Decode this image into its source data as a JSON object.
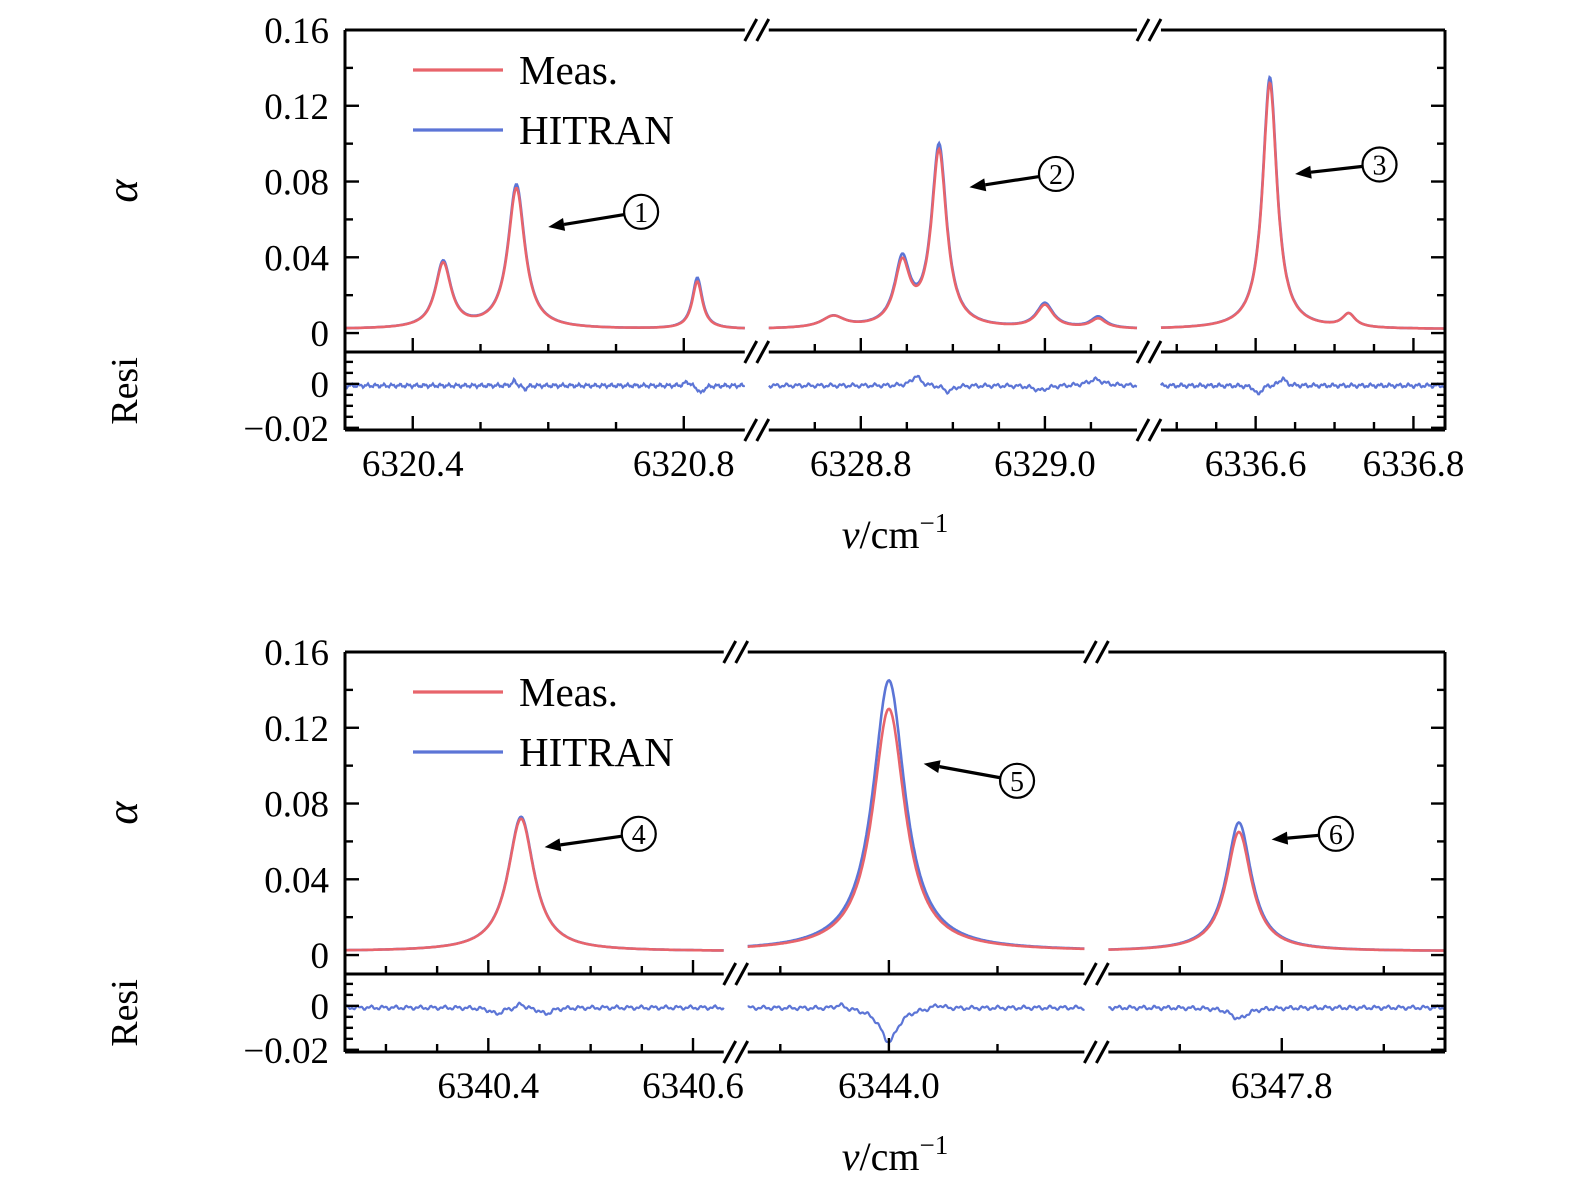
{
  "colors": {
    "meas": "#e8646b",
    "hitran": "#5c75d6",
    "axis": "#000000",
    "background": "#ffffff"
  },
  "chart_data": [
    {
      "type": "line",
      "title": "",
      "panel_labels": {
        "main_ylabel": "α",
        "resi_ylabel": "Resi",
        "xlabel_italic": "ν",
        "xlabel_upright": "/cm",
        "xlabel_sup": "−1"
      },
      "legend": {
        "position": "top-left",
        "items": [
          {
            "label": "Meas.",
            "color": "#e8646b"
          },
          {
            "label": "HITRAN",
            "color": "#5c75d6"
          }
        ]
      },
      "main_axis": {
        "ylim": [
          -0.01,
          0.16
        ],
        "yticks": [
          {
            "v": 0,
            "label": "0"
          },
          {
            "v": 0.04,
            "label": "0.04"
          },
          {
            "v": 0.08,
            "label": "0.08"
          },
          {
            "v": 0.12,
            "label": "0.12"
          },
          {
            "v": 0.16,
            "label": "0.16"
          }
        ],
        "minor_step": 0.02
      },
      "resi_axis": {
        "ylim": [
          -0.021,
          0.0145
        ],
        "yticks": [
          {
            "v": 0,
            "label": "0"
          },
          {
            "v": -0.02,
            "label": "−0.02"
          }
        ],
        "minor_step": 0.005
      },
      "baseline": 0.002,
      "segments": [
        {
          "xmin": 6320.3,
          "xmax": 6320.89,
          "width_frac": 0.38,
          "minor_step": 0.1,
          "xticks": [
            {
              "v": 6320.4,
              "label": "6320.4"
            },
            {
              "v": 6320.8,
              "label": "6320.8"
            }
          ],
          "peaks": [
            {
              "center": 6320.445,
              "meas": 0.034,
              "hitran": 0.035,
              "width": 0.028
            },
            {
              "center": 6320.553,
              "meas": 0.074,
              "hitran": 0.076,
              "width": 0.03
            },
            {
              "center": 6320.82,
              "meas": 0.025,
              "hitran": 0.027,
              "width": 0.018
            }
          ],
          "residual_features": [
            {
              "c": 6320.55,
              "a": 0.0022,
              "w": 0.007
            },
            {
              "c": 6320.565,
              "a": -0.0018,
              "w": 0.007
            },
            {
              "c": 6320.805,
              "a": 0.002,
              "w": 0.009
            },
            {
              "c": 6320.825,
              "a": -0.0035,
              "w": 0.01
            }
          ]
        },
        {
          "xmin": 6328.7,
          "xmax": 6329.1,
          "width_frac": 0.35,
          "minor_step": 0.05,
          "xticks": [
            {
              "v": 6328.8,
              "label": "6328.8"
            },
            {
              "v": 6329.0,
              "label": "6329.0"
            }
          ],
          "peaks": [
            {
              "center": 6328.77,
              "meas": 0.006,
              "hitran": 0.006,
              "width": 0.03
            },
            {
              "center": 6328.845,
              "meas": 0.032,
              "hitran": 0.034,
              "width": 0.02
            },
            {
              "center": 6328.885,
              "meas": 0.093,
              "hitran": 0.096,
              "width": 0.02
            },
            {
              "center": 6329.0,
              "meas": 0.012,
              "hitran": 0.013,
              "width": 0.022
            },
            {
              "center": 6329.058,
              "meas": 0.005,
              "hitran": 0.006,
              "width": 0.02
            }
          ],
          "residual_features": [
            {
              "c": 6328.86,
              "a": 0.0045,
              "w": 0.011
            },
            {
              "c": 6328.895,
              "a": -0.0028,
              "w": 0.012
            },
            {
              "c": 6328.995,
              "a": -0.0022,
              "w": 0.018
            },
            {
              "c": 6329.055,
              "a": 0.0028,
              "w": 0.02
            }
          ]
        },
        {
          "xmin": 6336.48,
          "xmax": 6336.84,
          "width_frac": 0.27,
          "minor_step": 0.05,
          "xticks": [
            {
              "v": 6336.6,
              "label": "6336.6"
            },
            {
              "v": 6336.8,
              "label": "6336.8"
            }
          ],
          "peaks": [
            {
              "center": 6336.618,
              "meas": 0.13,
              "hitran": 0.133,
              "width": 0.022
            },
            {
              "center": 6336.718,
              "meas": 0.007,
              "hitran": 0.007,
              "width": 0.02
            }
          ],
          "residual_features": [
            {
              "c": 6336.603,
              "a": -0.0042,
              "w": 0.009
            },
            {
              "c": 6336.634,
              "a": 0.0035,
              "w": 0.009
            }
          ]
        }
      ],
      "annotations": [
        {
          "number": "1",
          "seg": 0,
          "circle": [
            6320.737,
            0.064
          ],
          "tip": [
            6320.6,
            0.056
          ]
        },
        {
          "number": "2",
          "seg": 1,
          "circle": [
            6329.012,
            0.084
          ],
          "tip": [
            6328.918,
            0.077
          ]
        },
        {
          "number": "3",
          "seg": 2,
          "circle": [
            6336.757,
            0.089
          ],
          "tip": [
            6336.65,
            0.084
          ]
        }
      ]
    },
    {
      "type": "line",
      "title": "",
      "panel_labels": {
        "main_ylabel": "α",
        "resi_ylabel": "Resi",
        "xlabel_italic": "ν",
        "xlabel_upright": "/cm",
        "xlabel_sup": "−1"
      },
      "legend": {
        "position": "top-left",
        "items": [
          {
            "label": "Meas.",
            "color": "#e8646b"
          },
          {
            "label": "HITRAN",
            "color": "#5c75d6"
          }
        ]
      },
      "main_axis": {
        "ylim": [
          -0.01,
          0.16
        ],
        "yticks": [
          {
            "v": 0,
            "label": "0"
          },
          {
            "v": 0.04,
            "label": "0.04"
          },
          {
            "v": 0.08,
            "label": "0.08"
          },
          {
            "v": 0.12,
            "label": "0.12"
          },
          {
            "v": 0.16,
            "label": "0.16"
          }
        ],
        "minor_step": 0.02
      },
      "resi_axis": {
        "ylim": [
          -0.021,
          0.0145
        ],
        "yticks": [
          {
            "v": 0,
            "label": "0"
          },
          {
            "v": -0.02,
            "label": "−0.02"
          }
        ],
        "minor_step": 0.005
      },
      "baseline": 0.002,
      "segments": [
        {
          "xmin": 6340.26,
          "xmax": 6340.63,
          "width_frac": 0.36,
          "minor_step": 0.05,
          "xticks": [
            {
              "v": 6340.4,
              "label": "6340.4"
            },
            {
              "v": 6340.6,
              "label": "6340.6"
            }
          ],
          "peaks": [
            {
              "center": 6340.432,
              "meas": 0.07,
              "hitran": 0.071,
              "width": 0.031
            }
          ],
          "residual_features": [
            {
              "c": 6340.408,
              "a": -0.0028,
              "w": 0.014
            },
            {
              "c": 6340.432,
              "a": 0.0022,
              "w": 0.007
            },
            {
              "c": 6340.456,
              "a": -0.0028,
              "w": 0.014
            }
          ]
        },
        {
          "xmin": 6343.87,
          "xmax": 6344.18,
          "width_frac": 0.32,
          "minor_step": 0.1,
          "xticks": [
            {
              "v": 6344.0,
              "label": "6344.0"
            }
          ],
          "peaks": [
            {
              "center": 6344.0,
              "meas": 0.128,
              "hitran": 0.143,
              "width": 0.036
            }
          ],
          "residual_features": [
            {
              "c": 6344.0,
              "a": -0.0155,
              "w": 0.02
            },
            {
              "c": 6343.955,
              "a": 0.0018,
              "w": 0.012
            },
            {
              "c": 6344.045,
              "a": 0.0018,
              "w": 0.012
            }
          ]
        },
        {
          "xmin": 6347.63,
          "xmax": 6347.96,
          "width_frac": 0.32,
          "minor_step": 0.1,
          "xticks": [
            {
              "v": 6347.8,
              "label": "6347.8"
            }
          ],
          "peaks": [
            {
              "center": 6347.758,
              "meas": 0.063,
              "hitran": 0.068,
              "width": 0.03
            }
          ],
          "residual_features": [
            {
              "c": 6347.758,
              "a": -0.005,
              "w": 0.02
            }
          ]
        }
      ],
      "annotations": [
        {
          "number": "4",
          "seg": 0,
          "circle": [
            6340.547,
            0.064
          ],
          "tip": [
            6340.455,
            0.057
          ]
        },
        {
          "number": "5",
          "seg": 1,
          "circle": [
            6344.118,
            0.092
          ],
          "tip": [
            6344.032,
            0.101
          ]
        },
        {
          "number": "6",
          "seg": 2,
          "circle": [
            6347.853,
            0.064
          ],
          "tip": [
            6347.79,
            0.061
          ]
        }
      ]
    }
  ]
}
